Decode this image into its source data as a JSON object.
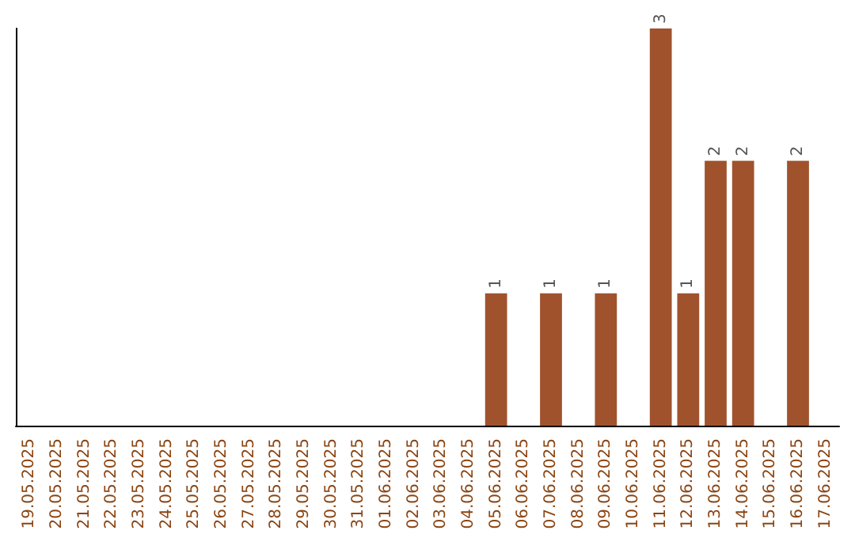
{
  "chart_data": {
    "type": "bar",
    "categories": [
      "19.05.2025",
      "20.05.2025",
      "21.05.2025",
      "22.05.2025",
      "23.05.2025",
      "24.05.2025",
      "25.05.2025",
      "26.05.2025",
      "27.05.2025",
      "28.05.2025",
      "29.05.2025",
      "30.05.2025",
      "31.05.2025",
      "01.06.2025",
      "02.06.2025",
      "03.06.2025",
      "04.06.2025",
      "05.06.2025",
      "06.06.2025",
      "07.06.2025",
      "08.06.2025",
      "09.06.2025",
      "10.06.2025",
      "11.06.2025",
      "12.06.2025",
      "13.06.2025",
      "14.06.2025",
      "15.06.2025",
      "16.06.2025",
      "17.06.2025"
    ],
    "values": [
      null,
      null,
      null,
      null,
      null,
      null,
      null,
      null,
      null,
      null,
      null,
      null,
      null,
      null,
      null,
      null,
      null,
      1,
      null,
      1,
      null,
      1,
      null,
      3,
      1,
      2,
      2,
      null,
      2,
      null
    ],
    "color": "#a0522d",
    "data_labels": true,
    "grid": false,
    "tick_labels": "x"
  }
}
